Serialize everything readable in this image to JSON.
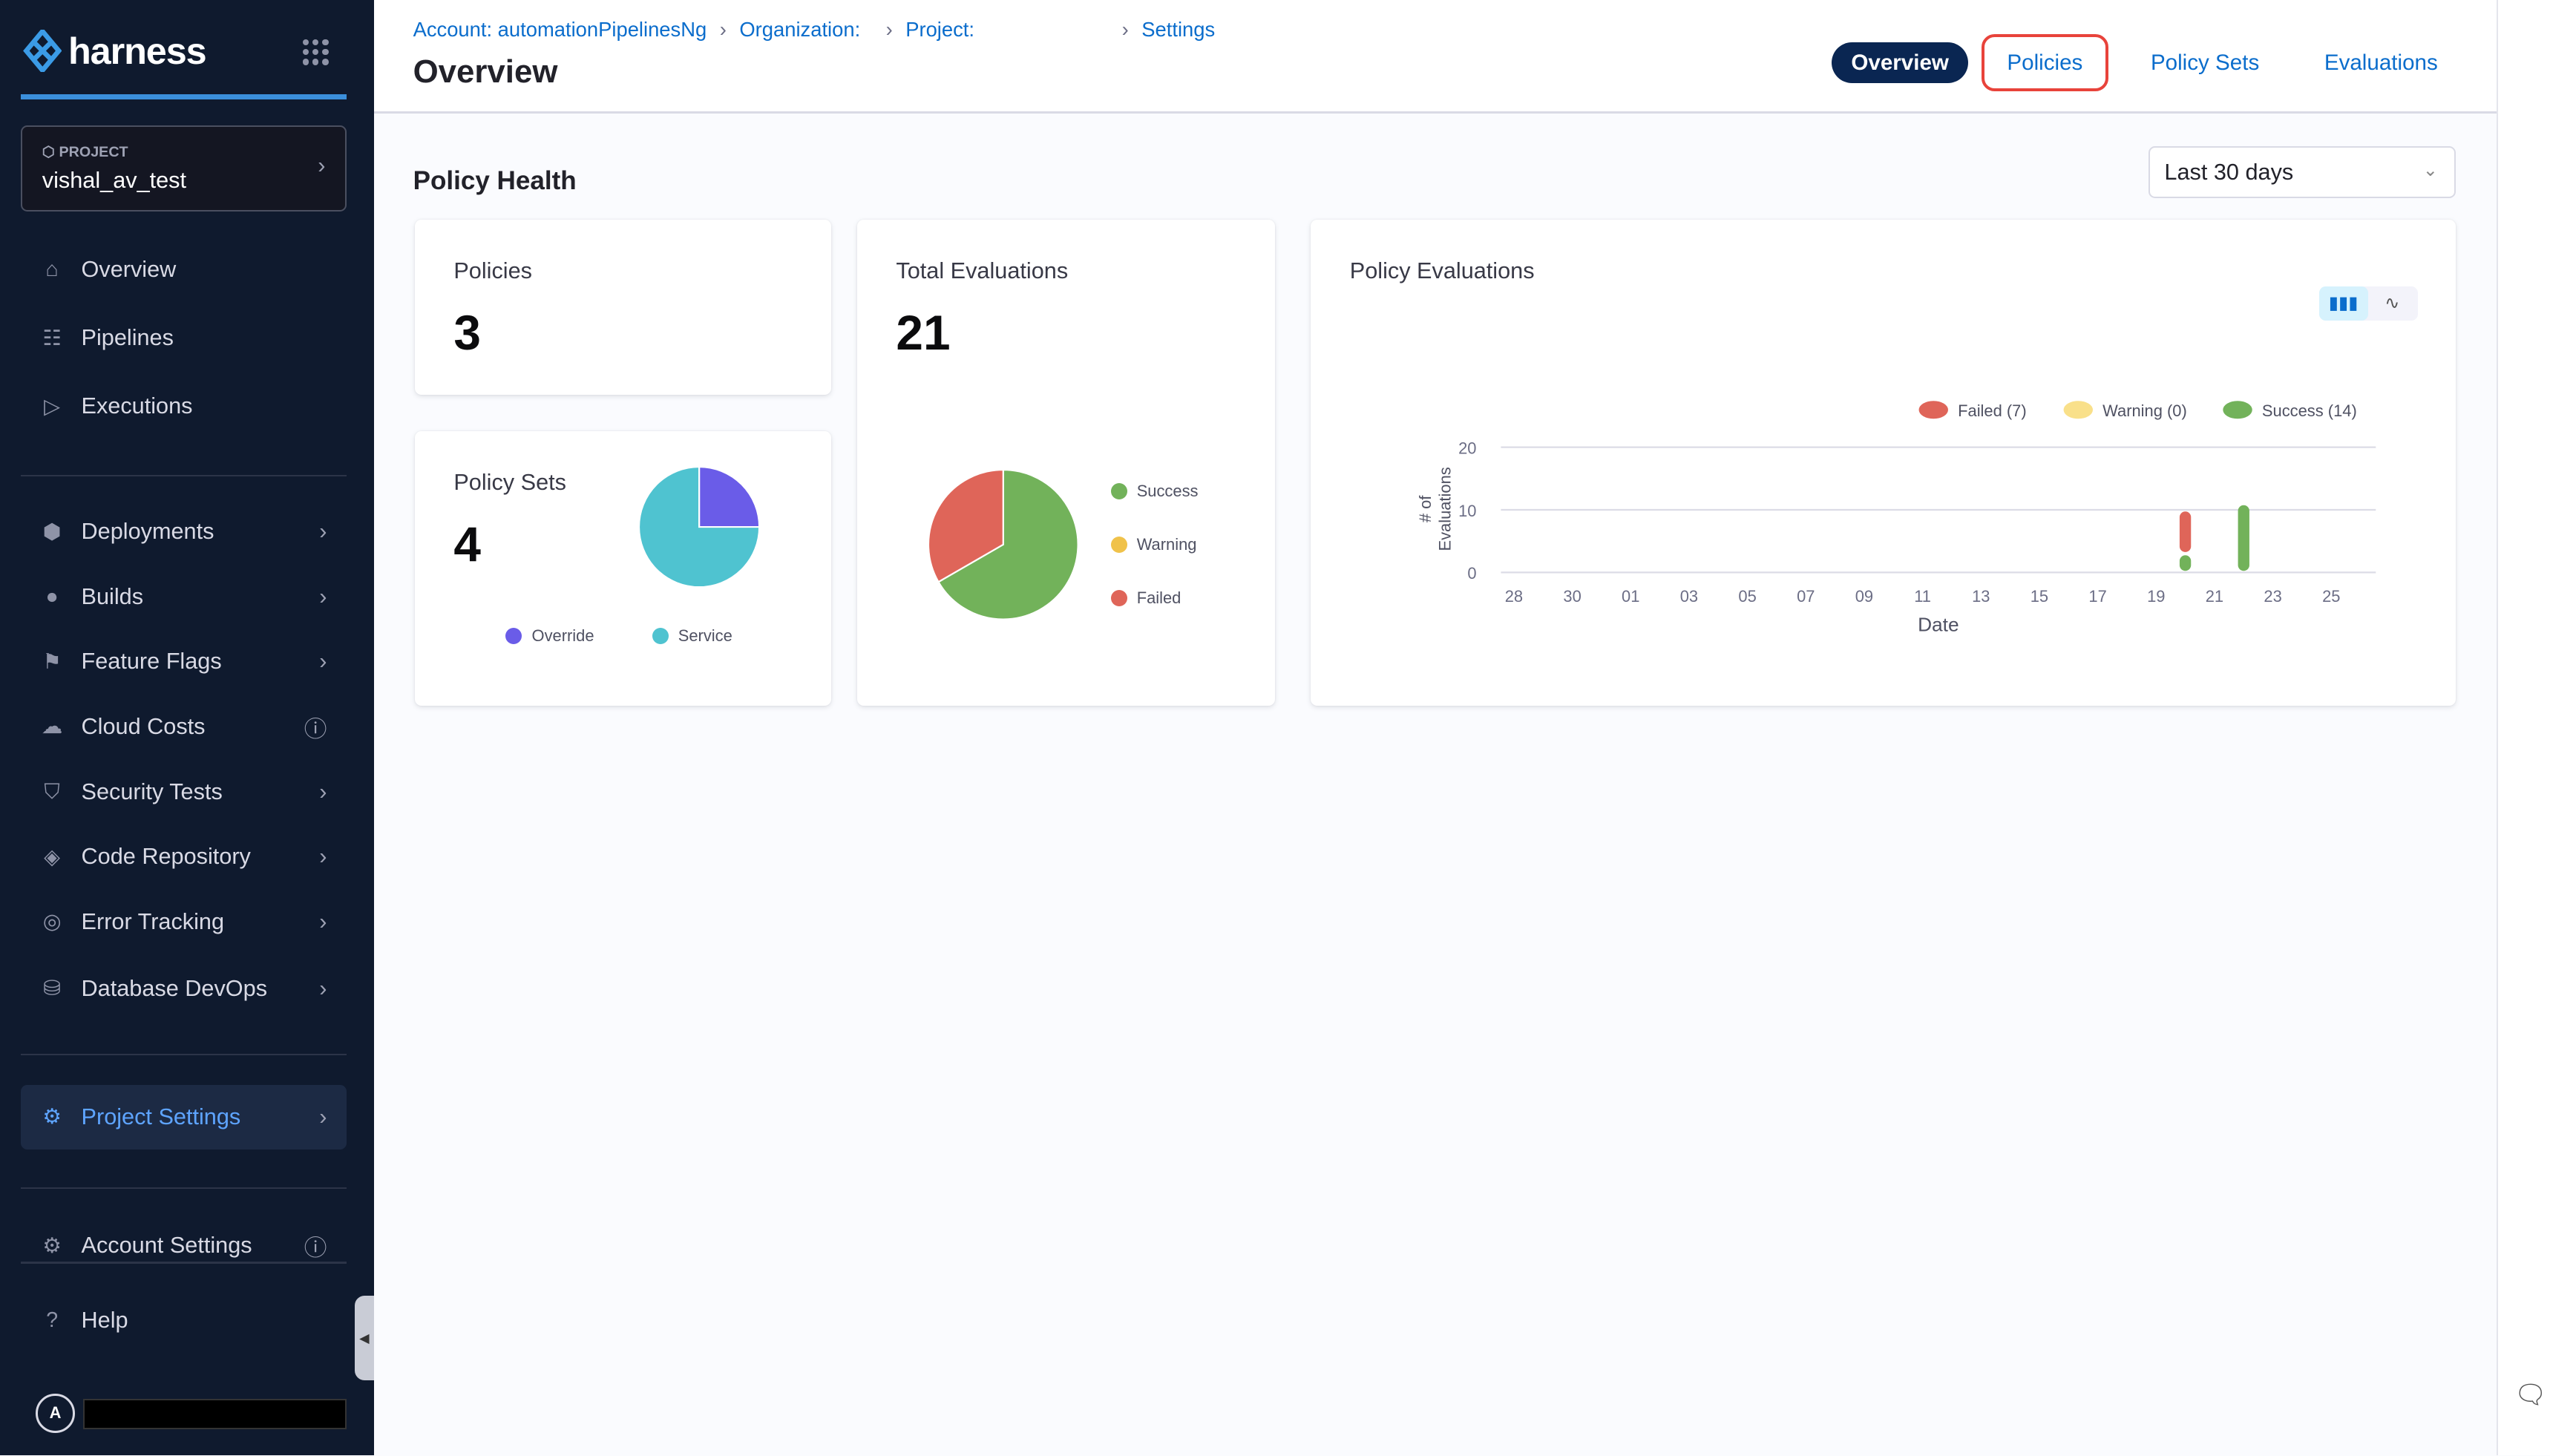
{
  "sidebar": {
    "brand": "harness",
    "project_label": "PROJECT",
    "project_name": "vishal_av_test",
    "items": [
      {
        "label": "Overview",
        "icon": "home-icon"
      },
      {
        "label": "Pipelines",
        "icon": "pipeline-icon"
      },
      {
        "label": "Executions",
        "icon": "executions-icon"
      },
      {
        "label": "Deployments",
        "icon": "deployments-icon"
      },
      {
        "label": "Builds",
        "icon": "builds-icon"
      },
      {
        "label": "Feature Flags",
        "icon": "feature-flags-icon"
      },
      {
        "label": "Cloud Costs",
        "icon": "cloud-costs-icon"
      },
      {
        "label": "Security Tests",
        "icon": "shield-icon"
      },
      {
        "label": "Code Repository",
        "icon": "code-icon"
      },
      {
        "label": "Error Tracking",
        "icon": "error-tracking-icon"
      },
      {
        "label": "Database DevOps",
        "icon": "database-icon"
      },
      {
        "label": "Project Settings",
        "icon": "gear-icon"
      },
      {
        "label": "Account Settings",
        "icon": "account-settings-icon"
      },
      {
        "label": "Help",
        "icon": "help-icon"
      }
    ],
    "avatar": "A"
  },
  "header": {
    "breadcrumbs": [
      "Account: automationPipelinesNg",
      "Organization:",
      "Project:",
      "Settings"
    ],
    "title": "Overview",
    "tabs": [
      "Overview",
      "Policies",
      "Policy Sets",
      "Evaluations"
    ],
    "active_tab": "Overview"
  },
  "main": {
    "section_title": "Policy Health",
    "range": "Last 30 days",
    "policies": {
      "label": "Policies",
      "value": "3"
    },
    "policy_sets": {
      "label": "Policy Sets",
      "value": "4",
      "legend": [
        "Override",
        "Service"
      ]
    },
    "total_evaluations": {
      "label": "Total Evaluations",
      "value": "21",
      "legend": [
        "Success",
        "Warning",
        "Failed"
      ]
    },
    "evaluations_chart": {
      "title": "Policy Evaluations"
    }
  },
  "colors": {
    "failed": "#df6559",
    "warning": "#f9e08a",
    "success": "#72b25a",
    "override": "#6a5ce8",
    "service": "#4fc3d0",
    "accent": "#0b6dcc"
  },
  "chart_data": [
    {
      "type": "pie",
      "slices": [
        {
          "label": "Override",
          "value": 1
        },
        {
          "label": "Service",
          "value": 3
        }
      ]
    },
    {
      "type": "pie",
      "slices": [
        {
          "label": "Success",
          "value": 14
        },
        {
          "label": "Warning",
          "value": 0
        },
        {
          "label": "Failed",
          "value": 7
        }
      ]
    },
    {
      "type": "bar",
      "stacked": true,
      "title": "Policy Evaluations",
      "xlabel": "Date",
      "ylabel": "# of Evaluations",
      "ylim": [
        0,
        20
      ],
      "yticks": [
        0,
        10,
        20
      ],
      "grid": true,
      "legend_position": "top-right",
      "legend": [
        "Failed (7)",
        "Warning (0)",
        "Success (14)"
      ],
      "xticks": [
        "28",
        "30",
        "01",
        "03",
        "05",
        "07",
        "09",
        "11",
        "13",
        "15",
        "17",
        "19",
        "21",
        "23",
        "25"
      ],
      "categories": [
        "20",
        "22"
      ],
      "series": [
        {
          "name": "Success",
          "values": [
            3,
            11
          ]
        },
        {
          "name": "Warning",
          "values": [
            0,
            0
          ]
        },
        {
          "name": "Failed",
          "values": [
            7,
            0
          ]
        }
      ]
    }
  ]
}
